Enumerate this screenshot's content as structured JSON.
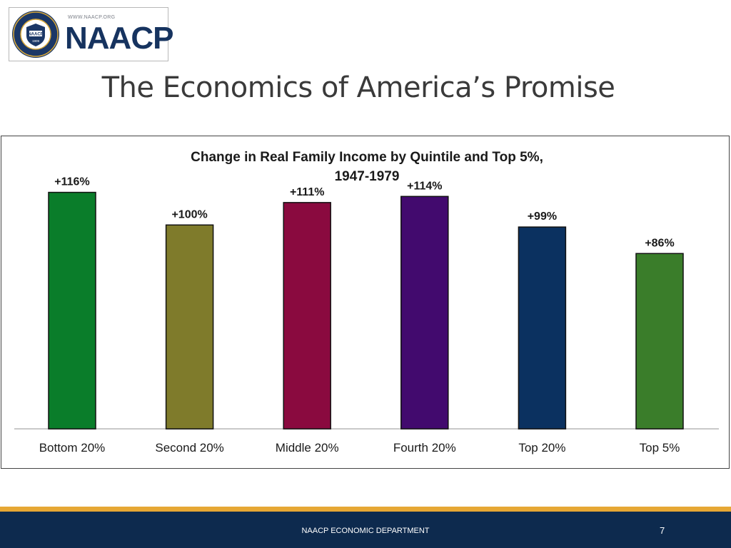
{
  "logo": {
    "url": "WWW.NAACP.ORG",
    "wordmark": "NAACP",
    "seal_text": "NATIONAL ASSOCIATION FOR THE ADVANCEMENT OF COLORED PEOPLE",
    "seal_center": "NAACP",
    "seal_year": "1909"
  },
  "slide": {
    "title": "The Economics of America’s Promise"
  },
  "chart_data": {
    "type": "bar",
    "title": "Change in Real Family Income by Quintile and Top 5%,",
    "subtitle": "1947-1979",
    "categories": [
      "Bottom 20%",
      "Second 20%",
      "Middle 20%",
      "Fourth 20%",
      "Top 20%",
      "Top 5%"
    ],
    "values": [
      116,
      100,
      111,
      114,
      99,
      86
    ],
    "labels": [
      "+116%",
      "+100%",
      "+111%",
      "+114%",
      "+99%",
      "+86%"
    ],
    "colors": [
      "#0a7d2a",
      "#7f7b2b",
      "#8a0a3f",
      "#420a6e",
      "#0b3160",
      "#3a7d2a"
    ],
    "ylim": [
      0,
      140
    ],
    "grid": false,
    "legend": "none",
    "xlabel": "",
    "ylabel": ""
  },
  "footer": {
    "department": "NAACP ECONOMIC DEPARTMENT",
    "page_number": "7"
  }
}
